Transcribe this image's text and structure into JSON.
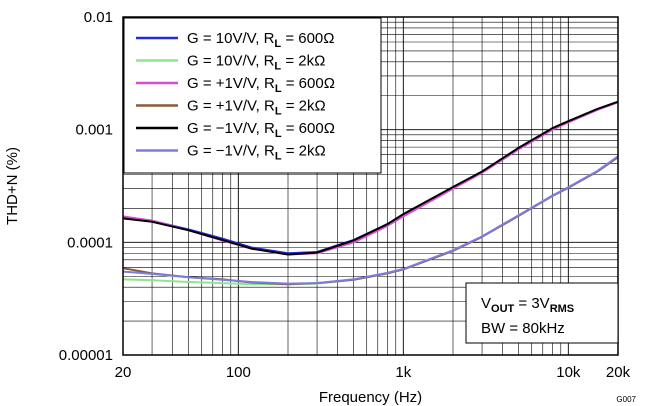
{
  "figure_code": "G007",
  "annotation": {
    "line1": {
      "pre": "V",
      "sub1": "OUT",
      "mid": " = 3V",
      "sub2": "RMS"
    },
    "line2": "BW = 80kHz"
  },
  "chart_data": {
    "type": "line",
    "title": "",
    "xlabel": "Frequency (Hz)",
    "ylabel": "THD+N (%)",
    "xscale": "log",
    "yscale": "log",
    "xlim": [
      20,
      20000
    ],
    "ylim": [
      1e-05,
      0.01
    ],
    "grid": true,
    "legend_position": "top-left",
    "xticks": [
      {
        "value": 20,
        "label": "20"
      },
      {
        "value": 100,
        "label": "100"
      },
      {
        "value": 1000,
        "label": "1k"
      },
      {
        "value": 10000,
        "label": "10k"
      },
      {
        "value": 20000,
        "label": "20k"
      }
    ],
    "yticks": [
      {
        "value": 0.01,
        "label": "0.01"
      },
      {
        "value": 0.001,
        "label": "0.001"
      },
      {
        "value": 0.0001,
        "label": "0.0001"
      },
      {
        "value": 1e-05,
        "label": "0.00001"
      }
    ],
    "series": [
      {
        "name": "G = 10V/V, R_L = 600Ω",
        "legend": {
          "pre": "G = 10V/V, R",
          "sub": "L",
          "post": " = 600Ω"
        },
        "color": "#1f2fd8",
        "x": [
          20,
          30,
          50,
          80,
          120,
          200,
          300,
          500,
          800,
          1000,
          2000,
          3000,
          5000,
          8000,
          10000,
          15000,
          20000
        ],
        "y": [
          0.000168,
          0.000155,
          0.00013,
          0.000108,
          9e-05,
          8e-05,
          8.2e-05,
          0.000105,
          0.000145,
          0.000175,
          0.000305,
          0.00042,
          0.00068,
          0.00102,
          0.00118,
          0.00152,
          0.00176
        ]
      },
      {
        "name": "G = 10V/V, R_L = 2kΩ",
        "legend": {
          "pre": "G = 10V/V, R",
          "sub": "L",
          "post": " = 2kΩ"
        },
        "color": "#8ee68e",
        "x": [
          20,
          30,
          50,
          80,
          120,
          200,
          300,
          500,
          800,
          1000,
          2000,
          3000,
          5000,
          8000,
          10000,
          15000,
          20000
        ],
        "y": [
          4.7e-05,
          4.6e-05,
          4.45e-05,
          4.35e-05,
          4.25e-05,
          4.25e-05,
          4.3e-05,
          4.65e-05,
          5.3e-05,
          5.75e-05,
          8.4e-05,
          0.000112,
          0.000172,
          0.000258,
          0.000305,
          0.000425,
          0.00057
        ]
      },
      {
        "name": "G = +1V/V, R_L = 600Ω",
        "legend": {
          "pre": "G = +1V/V, R",
          "sub": "L",
          "post": " = 600Ω"
        },
        "color": "#d94bd1",
        "x": [
          20,
          30,
          50,
          80,
          120,
          200,
          300,
          500,
          800,
          1000,
          2000,
          3000,
          5000,
          8000,
          10000,
          15000,
          20000
        ],
        "y": [
          0.00017,
          0.000156,
          0.000128,
          0.000104,
          8.8e-05,
          7.8e-05,
          8e-05,
          0.0001,
          0.00014,
          0.00017,
          0.0003,
          0.000415,
          0.00067,
          0.001,
          0.00116,
          0.0015,
          0.00175
        ]
      },
      {
        "name": "G = +1V/V, R_L = 2kΩ",
        "legend": {
          "pre": "G = +1V/V, R",
          "sub": "L",
          "post": " = 2kΩ"
        },
        "color": "#8a5a3a",
        "x": [
          20,
          30,
          50,
          80,
          120,
          200,
          300,
          500,
          800,
          1000,
          2000,
          3000,
          5000,
          8000,
          10000,
          15000,
          20000
        ],
        "y": [
          5.9e-05,
          5.3e-05,
          4.9e-05,
          4.7e-05,
          4.4e-05,
          4.25e-05,
          4.35e-05,
          4.65e-05,
          5.3e-05,
          5.75e-05,
          8.4e-05,
          0.000112,
          0.000172,
          0.000258,
          0.000305,
          0.000425,
          0.00057
        ]
      },
      {
        "name": "G = −1V/V, R_L = 600Ω",
        "legend": {
          "pre": "G = −1V/V, R",
          "sub": "L",
          "post": " = 600Ω"
        },
        "color": "#000000",
        "x": [
          20,
          30,
          50,
          80,
          120,
          200,
          300,
          500,
          800,
          1000,
          2000,
          3000,
          5000,
          8000,
          10000,
          15000,
          20000
        ],
        "y": [
          0.000163,
          0.000152,
          0.000128,
          0.000105,
          8.8e-05,
          7.8e-05,
          8.1e-05,
          0.000104,
          0.000145,
          0.000178,
          0.00031,
          0.000425,
          0.00069,
          0.00103,
          0.00119,
          0.00153,
          0.00177
        ]
      },
      {
        "name": "G = −1V/V, R_L = 2kΩ",
        "legend": {
          "pre": "G = −1V/V, R",
          "sub": "L",
          "post": " = 2kΩ"
        },
        "color": "#7b7be0",
        "x": [
          20,
          30,
          50,
          80,
          120,
          200,
          300,
          500,
          800,
          1000,
          2000,
          3000,
          5000,
          8000,
          10000,
          15000,
          20000
        ],
        "y": [
          5.5e-05,
          5.25e-05,
          4.9e-05,
          4.65e-05,
          4.45e-05,
          4.3e-05,
          4.35e-05,
          4.7e-05,
          5.35e-05,
          5.8e-05,
          8.5e-05,
          0.000113,
          0.000174,
          0.00026,
          0.000308,
          0.00043,
          0.00058
        ]
      }
    ]
  }
}
